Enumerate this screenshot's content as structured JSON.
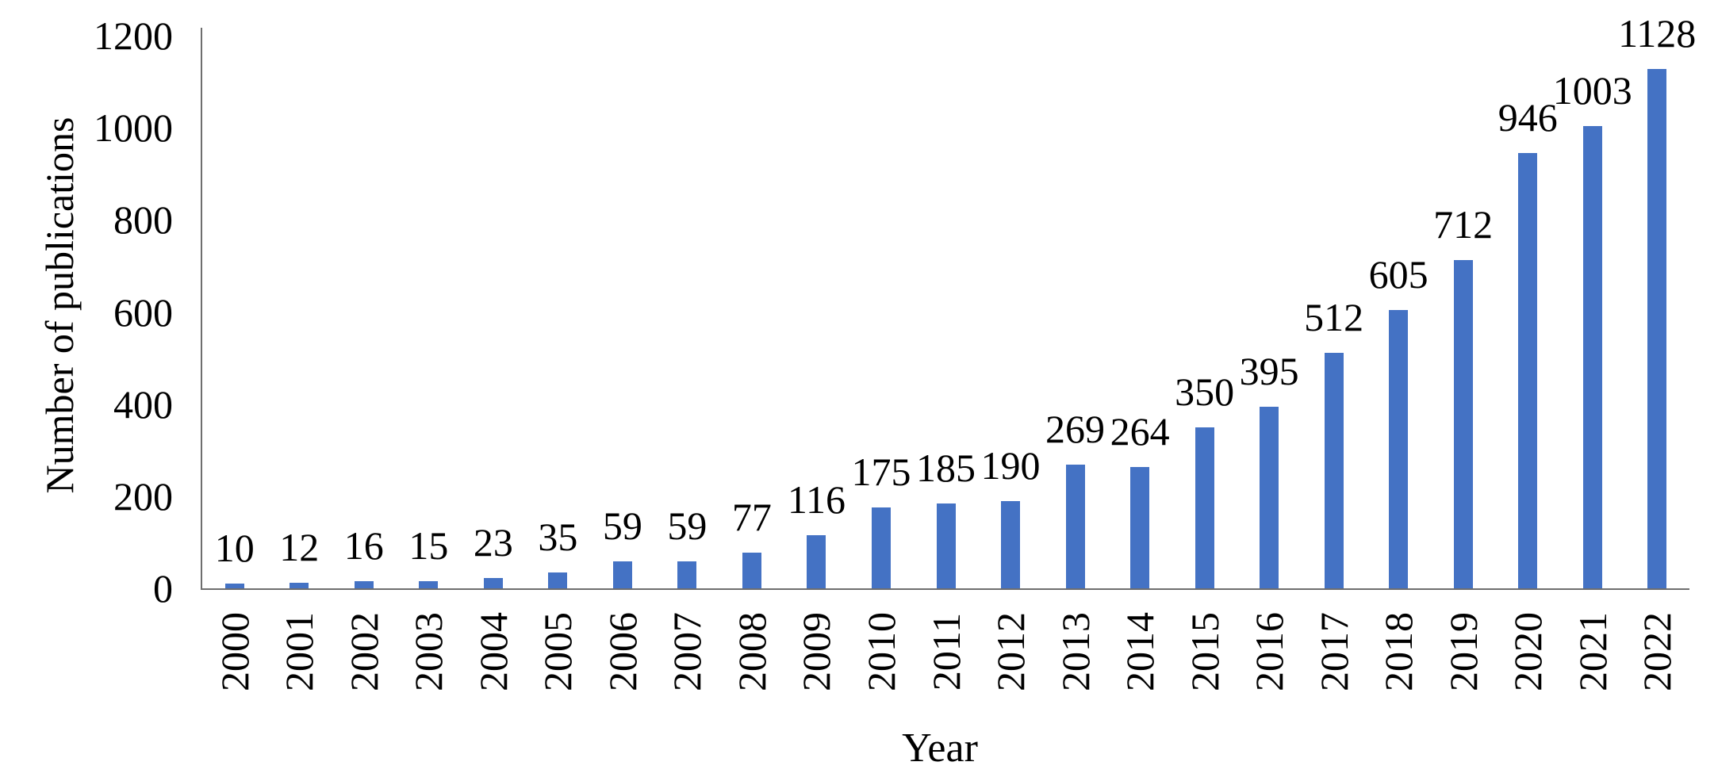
{
  "chart_data": {
    "type": "bar",
    "title": "",
    "xlabel": "Year",
    "ylabel": "Number of publications",
    "categories": [
      "2000",
      "2001",
      "2002",
      "2003",
      "2004",
      "2005",
      "2006",
      "2007",
      "2008",
      "2009",
      "2010",
      "2011",
      "2012",
      "2013",
      "2014",
      "2015",
      "2016",
      "2017",
      "2018",
      "2019",
      "2020",
      "2021",
      "2022"
    ],
    "values": [
      10,
      12,
      16,
      15,
      23,
      35,
      59,
      59,
      77,
      116,
      175,
      185,
      190,
      269,
      264,
      350,
      395,
      512,
      605,
      712,
      946,
      1003,
      1128
    ],
    "data_labels": [
      10,
      12,
      16,
      15,
      23,
      35,
      59,
      59,
      77,
      116,
      175,
      185,
      190,
      269,
      264,
      350,
      395,
      512,
      605,
      712,
      946,
      1003,
      1128
    ],
    "ylim": [
      0,
      1200
    ],
    "yticks": [
      0,
      200,
      400,
      600,
      800,
      1000,
      1200
    ],
    "grid": "off",
    "legend": "none",
    "data_label_position": "above-bars",
    "colors": {
      "bar": "#4472C4",
      "axis": "#6e6e6e",
      "text": "#000000",
      "background": "#ffffff"
    }
  }
}
